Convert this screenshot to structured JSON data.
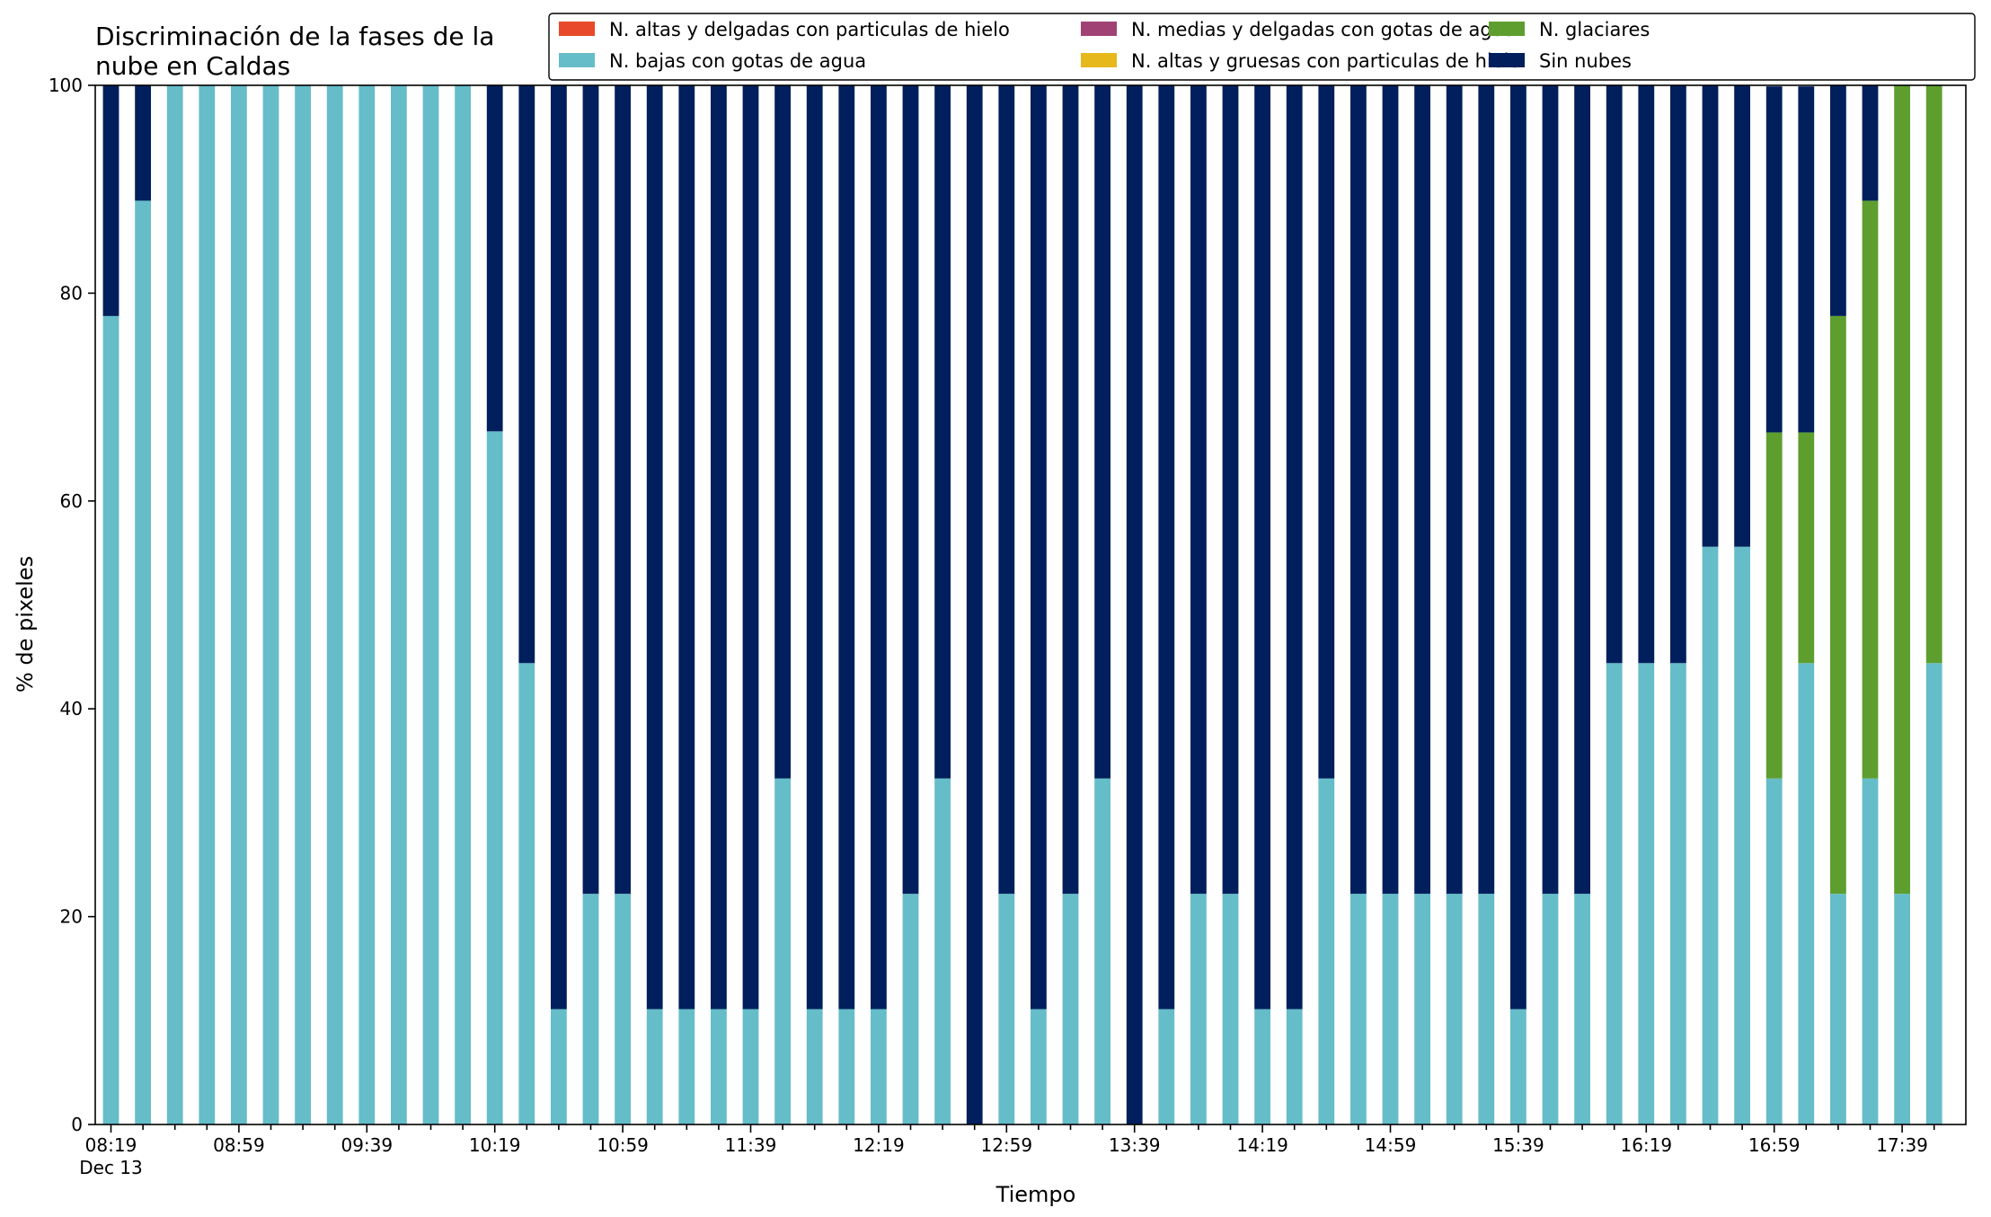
{
  "chart_data": {
    "type": "bar",
    "stacked": true,
    "title": "Discriminación de la fases de la\nnube en Caldas",
    "xlabel": "Tiempo",
    "ylabel": "% de pixeles",
    "ylim": [
      0,
      100
    ],
    "yticks": [
      0,
      20,
      40,
      60,
      80,
      100
    ],
    "grid": false,
    "legend_placement": "top-right",
    "x_tick_labels": [
      {
        "index": 0,
        "label": "08:19",
        "sublabel": "Dec 13"
      },
      {
        "index": 4,
        "label": "08:59"
      },
      {
        "index": 8,
        "label": "09:39"
      },
      {
        "index": 12,
        "label": "10:19"
      },
      {
        "index": 16,
        "label": "10:59"
      },
      {
        "index": 20,
        "label": "11:39"
      },
      {
        "index": 24,
        "label": "12:19"
      },
      {
        "index": 28,
        "label": "12:59"
      },
      {
        "index": 32,
        "label": "13:39"
      },
      {
        "index": 36,
        "label": "14:19"
      },
      {
        "index": 40,
        "label": "14:59"
      },
      {
        "index": 44,
        "label": "15:39"
      },
      {
        "index": 48,
        "label": "16:19"
      },
      {
        "index": 52,
        "label": "16:59"
      },
      {
        "index": 56,
        "label": "17:39"
      }
    ],
    "times": [
      "08:19",
      "08:29",
      "08:39",
      "08:49",
      "08:59",
      "09:09",
      "09:19",
      "09:29",
      "09:39",
      "09:49",
      "09:59",
      "10:09",
      "10:19",
      "10:29",
      "10:39",
      "10:49",
      "10:59",
      "11:09",
      "11:19",
      "11:29",
      "11:39",
      "11:49",
      "11:59",
      "12:09",
      "12:19",
      "12:29",
      "12:39",
      "12:49",
      "12:59",
      "13:09",
      "13:19",
      "13:29",
      "13:39",
      "13:49",
      "13:59",
      "14:09",
      "14:19",
      "14:29",
      "14:39",
      "14:49",
      "14:59",
      "15:09",
      "15:19",
      "15:29",
      "15:39",
      "15:49",
      "15:59",
      "16:09",
      "16:19",
      "16:29",
      "16:39",
      "16:49",
      "16:59",
      "17:09",
      "17:19",
      "17:29",
      "17:39",
      "17:49"
    ],
    "series": [
      {
        "name": "N. altas y delgadas con particulas de hielo",
        "color": "#e8492a",
        "values": [
          0,
          0,
          0,
          0,
          0,
          0,
          0,
          0,
          0,
          0,
          0,
          0,
          0,
          0,
          0,
          0,
          0,
          0,
          0,
          0,
          0,
          0,
          0,
          0,
          0,
          0,
          0,
          0,
          0,
          0,
          0,
          0,
          0,
          0,
          0,
          0,
          0,
          0,
          0,
          0,
          0,
          0,
          0,
          0,
          0,
          0,
          0,
          0,
          0,
          0,
          0,
          0,
          0,
          0,
          0,
          0,
          0,
          0
        ]
      },
      {
        "name": "N. altas y gruesas con particulas de hielo",
        "color": "#e6b81c",
        "values": [
          0,
          0,
          0,
          0,
          0,
          0,
          0,
          0,
          0,
          0,
          0,
          0,
          0,
          0,
          0,
          0,
          0,
          0,
          0,
          0,
          0,
          0,
          0,
          0,
          0,
          0,
          0,
          0,
          0,
          0,
          0,
          0,
          0,
          0,
          0,
          0,
          0,
          0,
          0,
          0,
          0,
          0,
          0,
          0,
          0,
          0,
          0,
          0,
          0,
          0,
          0,
          0,
          0,
          0,
          0,
          0,
          0,
          0
        ]
      },
      {
        "name": "N. bajas con gotas de agua",
        "color": "#65bdc9",
        "values": [
          77.8,
          88.9,
          100,
          100,
          100,
          100,
          100,
          100,
          100,
          100,
          100,
          100,
          66.7,
          44.4,
          11.1,
          22.2,
          22.2,
          11.1,
          11.1,
          11.1,
          11.1,
          33.3,
          11.1,
          11.1,
          11.1,
          22.2,
          33.3,
          0,
          22.2,
          11.1,
          22.2,
          33.3,
          0,
          11.1,
          22.2,
          22.2,
          11.1,
          11.1,
          33.3,
          22.2,
          22.2,
          22.2,
          22.2,
          22.2,
          11.1,
          22.2,
          22.2,
          44.4,
          44.4,
          44.4,
          55.6,
          55.6,
          33.3,
          44.4,
          22.2,
          33.3,
          22.2,
          44.4
        ]
      },
      {
        "name": "N. medias y delgadas con gotas de agua",
        "color": "#a04274",
        "values": [
          0,
          0,
          0,
          0,
          0,
          0,
          0,
          0,
          0,
          0,
          0,
          0,
          0,
          0,
          0,
          0,
          0,
          0,
          0,
          0,
          0,
          0,
          0,
          0,
          0,
          0,
          0,
          0,
          0,
          0,
          0,
          0,
          0,
          0,
          0,
          0,
          0,
          0,
          0,
          0,
          0,
          0,
          0,
          0,
          0,
          0,
          0,
          0,
          0,
          0,
          0,
          0,
          0,
          0,
          0,
          0,
          0,
          0
        ]
      },
      {
        "name": "N. glaciares",
        "color": "#5e9e2f",
        "values": [
          0,
          0,
          0,
          0,
          0,
          0,
          0,
          0,
          0,
          0,
          0,
          0,
          0,
          0,
          0,
          0,
          0,
          0,
          0,
          0,
          0,
          0,
          0,
          0,
          0,
          0,
          0,
          0,
          0,
          0,
          0,
          0,
          0,
          0,
          0,
          0,
          0,
          0,
          0,
          0,
          0,
          0,
          0,
          0,
          0,
          0,
          0,
          0,
          0,
          0,
          0,
          0,
          33.3,
          22.2,
          55.6,
          55.6,
          77.8,
          55.6
        ]
      },
      {
        "name": "Sin nubes",
        "color": "#001f5c",
        "values": [
          22.2,
          11.1,
          0,
          0,
          0,
          0,
          0,
          0,
          0,
          0,
          0,
          0,
          33.3,
          55.6,
          88.9,
          77.8,
          77.8,
          88.9,
          88.9,
          88.9,
          88.9,
          66.7,
          88.9,
          88.9,
          88.9,
          77.8,
          66.7,
          100,
          77.8,
          88.9,
          77.8,
          66.7,
          100,
          88.9,
          77.8,
          77.8,
          88.9,
          88.9,
          66.7,
          77.8,
          77.8,
          77.8,
          77.8,
          77.8,
          88.9,
          77.8,
          77.8,
          55.6,
          55.6,
          55.6,
          44.4,
          44.4,
          33.3,
          33.3,
          22.2,
          11.1,
          0,
          0
        ]
      }
    ],
    "legend_order": [
      0,
      2,
      3,
      1,
      4,
      5
    ]
  }
}
